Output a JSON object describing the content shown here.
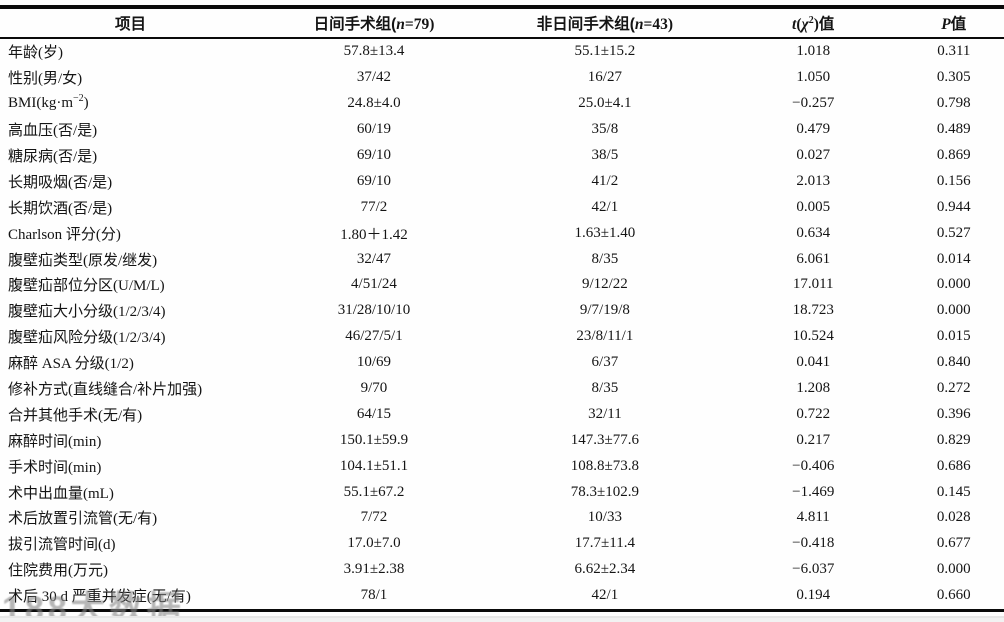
{
  "table": {
    "header": {
      "item": "项目",
      "group1": {
        "pre": "日间手术组(",
        "var": "n",
        "post": "=79)"
      },
      "group2": {
        "pre": "非日间手术组(",
        "var": "n",
        "post": "=43)"
      },
      "stat": {
        "var": "t",
        "open": "(",
        "chi": "χ",
        "chi_sup": "2",
        "close": ")",
        "suffix": "值"
      },
      "p": {
        "var": "P",
        "suffix": "值"
      }
    },
    "rows": [
      {
        "label": "年龄(岁)",
        "g1": "57.8±13.4",
        "g2": "55.1±15.2",
        "t": "1.018",
        "p": "0.311"
      },
      {
        "label": "性别(男/女)",
        "g1": "37/42",
        "g2": "16/27",
        "t": "1.050",
        "p": "0.305"
      },
      {
        "label_pre": "BMI(kg·m",
        "label_sup": "−2",
        "label_post": ")",
        "g1": "24.8±4.0",
        "g2": "25.0±4.1",
        "t": "−0.257",
        "p": "0.798"
      },
      {
        "label": "高血压(否/是)",
        "g1": "60/19",
        "g2": "35/8",
        "t": "0.479",
        "p": "0.489"
      },
      {
        "label": "糖尿病(否/是)",
        "g1": "69/10",
        "g2": "38/5",
        "t": "0.027",
        "p": "0.869"
      },
      {
        "label": "长期吸烟(否/是)",
        "g1": "69/10",
        "g2": "41/2",
        "t": "2.013",
        "p": "0.156"
      },
      {
        "label": "长期饮酒(否/是)",
        "g1": "77/2",
        "g2": "42/1",
        "t": "0.005",
        "p": "0.944"
      },
      {
        "label": "Charlson 评分(分)",
        "g1": "1.80＋1.42",
        "g2": "1.63±1.40",
        "t": "0.634",
        "p": "0.527"
      },
      {
        "label": "腹壁疝类型(原发/继发)",
        "g1": "32/47",
        "g2": "8/35",
        "t": "6.061",
        "p": "0.014"
      },
      {
        "label": "腹壁疝部位分区(U/M/L)",
        "g1": "4/51/24",
        "g2": "9/12/22",
        "t": "17.011",
        "p": "0.000"
      },
      {
        "label": "腹壁疝大小分级(1/2/3/4)",
        "g1": "31/28/10/10",
        "g2": "9/7/19/8",
        "t": "18.723",
        "p": "0.000"
      },
      {
        "label": "腹壁疝风险分级(1/2/3/4)",
        "g1": "46/27/5/1",
        "g2": "23/8/11/1",
        "t": "10.524",
        "p": "0.015"
      },
      {
        "label": "麻醉 ASA 分级(1/2)",
        "g1": "10/69",
        "g2": "6/37",
        "t": "0.041",
        "p": "0.840"
      },
      {
        "label": "修补方式(直线缝合/补片加强)",
        "g1": "9/70",
        "g2": "8/35",
        "t": "1.208",
        "p": "0.272"
      },
      {
        "label": "合并其他手术(无/有)",
        "g1": "64/15",
        "g2": "32/11",
        "t": "0.722",
        "p": "0.396"
      },
      {
        "label": "麻醉时间(min)",
        "g1": "150.1±59.9",
        "g2": "147.3±77.6",
        "t": "0.217",
        "p": "0.829"
      },
      {
        "label": "手术时间(min)",
        "g1": "104.1±51.1",
        "g2": "108.8±73.8",
        "t": "−0.406",
        "p": "0.686"
      },
      {
        "label": "术中出血量(mL)",
        "g1": "55.1±67.2",
        "g2": "78.3±102.9",
        "t": "−1.469",
        "p": "0.145"
      },
      {
        "label": "术后放置引流管(无/有)",
        "g1": "7/72",
        "g2": "10/33",
        "t": "4.811",
        "p": "0.028"
      },
      {
        "label": "拔引流管时间(d)",
        "g1": "17.0±7.0",
        "g2": "17.7±11.4",
        "t": "−0.418",
        "p": "0.677"
      },
      {
        "label": "住院费用(万元)",
        "g1": "3.91±2.38",
        "g2": "6.62±2.34",
        "t": "−6.037",
        "p": "0.000"
      },
      {
        "label": "术后 30 d 严重并发症(无/有)",
        "g1": "78/1",
        "g2": "42/1",
        "t": "0.194",
        "p": "0.660"
      }
    ]
  },
  "watermark": {
    "text": "188大数据"
  }
}
